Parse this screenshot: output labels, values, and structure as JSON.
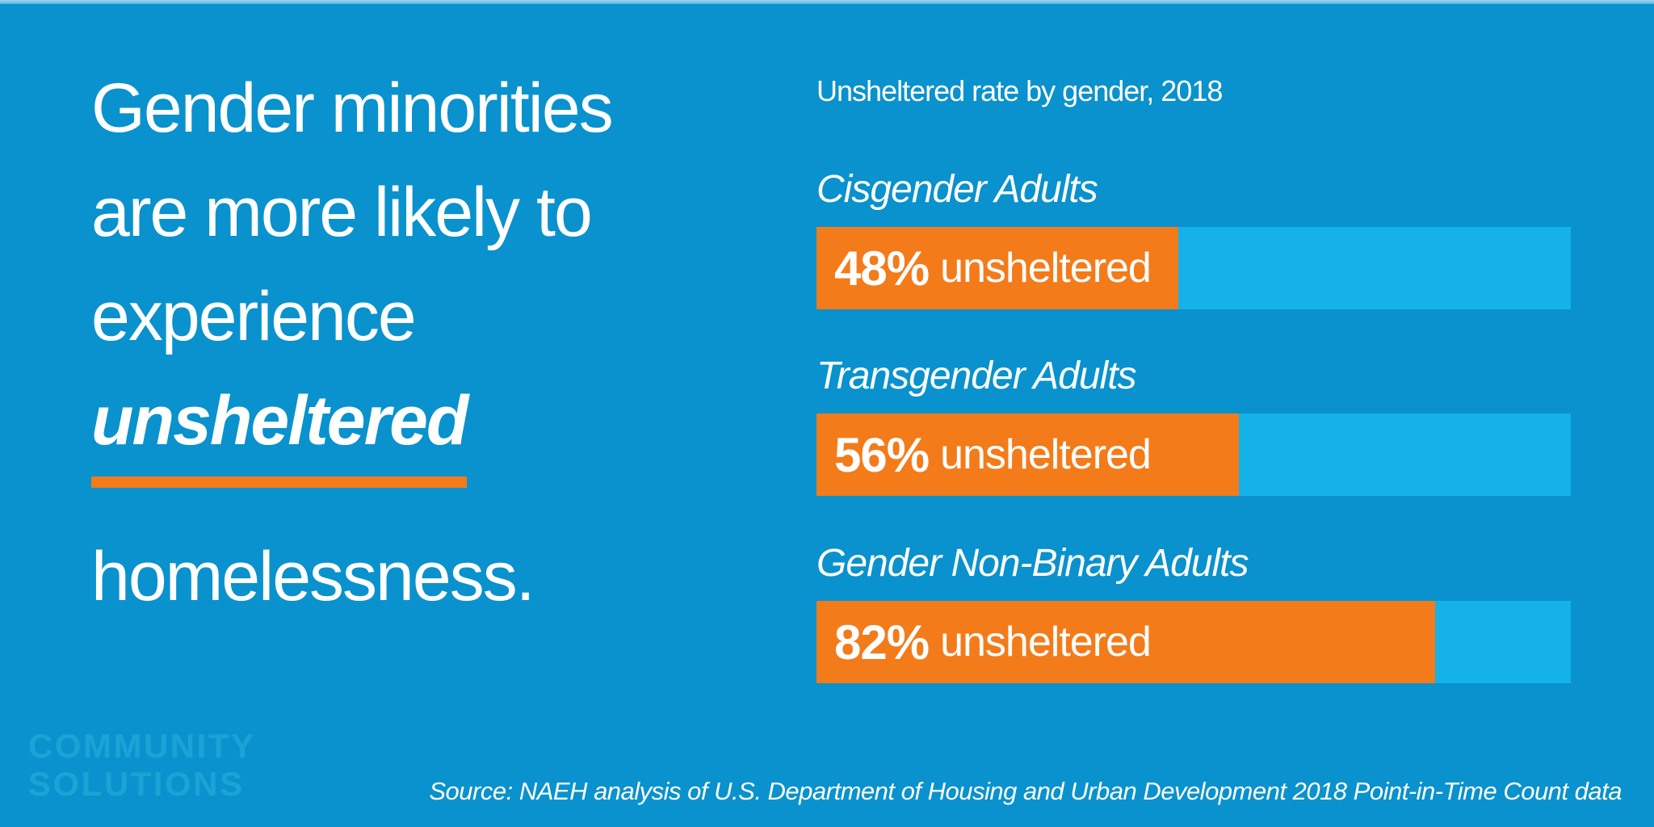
{
  "page": {
    "background_color": "#0992CD",
    "accent_orange": "#F47B1A",
    "track_blue": "#14B2E9",
    "logo_blue": "#1CA3D6",
    "text_color": "#FFFFFF"
  },
  "headline": {
    "line1": "Gender minorities",
    "line2": "are more likely to",
    "line3": "experience",
    "emphasis": "unsheltered",
    "line5": "homelessness."
  },
  "logo": {
    "line1": "COMMUNITY",
    "line2": "SOLUTIONS"
  },
  "source": "Source: NAEH analysis of U.S. Department of Housing and Urban Development 2018 Point-in-Time Count data",
  "chart": {
    "bars": [
      {
        "pct": "48%",
        "suffix": "unsheltered"
      },
      {
        "pct": "56%",
        "suffix": "unsheltered"
      },
      {
        "pct": "82%",
        "suffix": "unsheltered"
      }
    ]
  },
  "chart_data": {
    "type": "bar",
    "orientation": "horizontal",
    "title": "Unsheltered rate by gender, 2018",
    "categories": [
      "Cisgender Adults",
      "Transgender Adults",
      "Gender Non-Binary Adults"
    ],
    "values": [
      48,
      56,
      82
    ],
    "unit": "percent unsheltered",
    "data_labels": [
      "48% unsheltered",
      "56% unsheltered",
      "82% unsheltered"
    ],
    "xlim": [
      0,
      100
    ],
    "xlabel": "",
    "ylabel": "",
    "grid": false,
    "legend": false,
    "bar_color": "#F47B1A",
    "track_color": "#14B2E9"
  }
}
